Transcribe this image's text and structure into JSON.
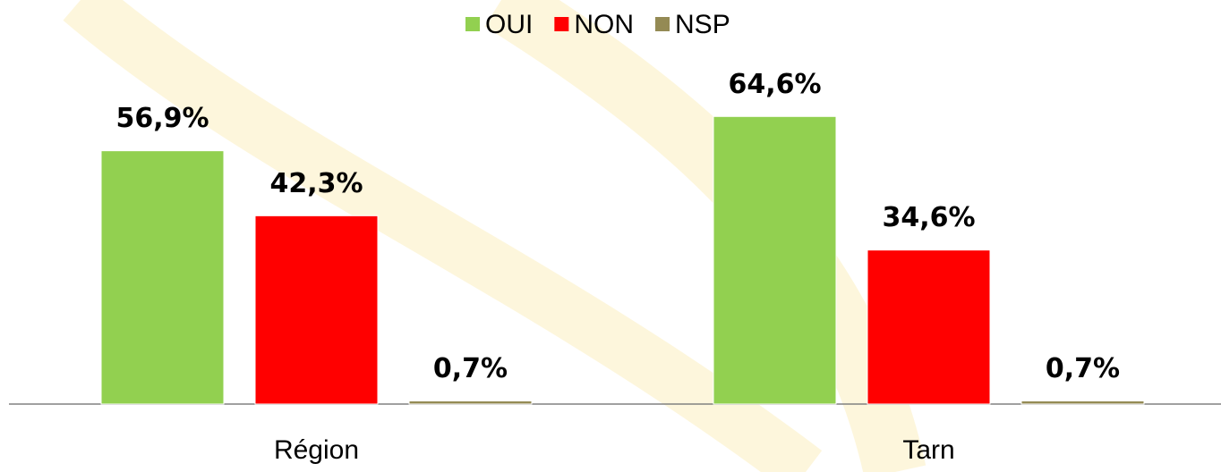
{
  "chart_data": {
    "type": "bar",
    "categories": [
      "Région",
      "Tarn"
    ],
    "series": [
      {
        "name": "OUI",
        "color": "#92d050",
        "values": [
          56.9,
          64.6
        ],
        "value_labels": [
          "56,9%",
          "64,6%"
        ]
      },
      {
        "name": "NON",
        "color": "#ff0000",
        "values": [
          42.3,
          34.6
        ],
        "value_labels": [
          "42,3%",
          "34,6%"
        ]
      },
      {
        "name": "NSP",
        "color": "#948a54",
        "values": [
          0.7,
          0.7
        ],
        "value_labels": [
          "0,7%",
          "0,7%"
        ]
      }
    ],
    "legend": "top"
  }
}
